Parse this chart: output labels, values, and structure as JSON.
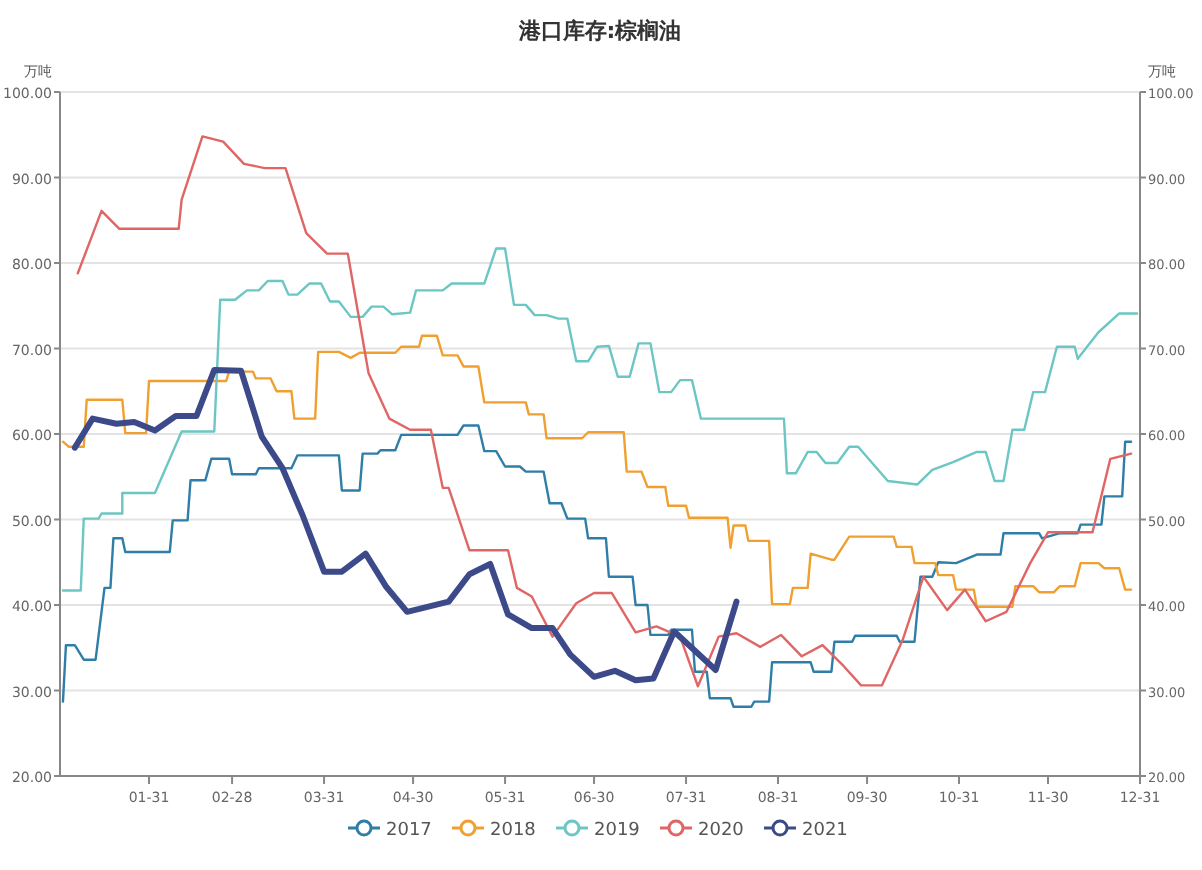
{
  "chart_data": {
    "type": "line",
    "title": "港口库存:棕榈油",
    "ylabel": "万吨",
    "y2label": "万吨",
    "xlim": [
      "--01-01",
      "--12-31"
    ],
    "xticks": [
      {
        "value": "--01-31",
        "label": "01-31"
      },
      {
        "value": "--02-28",
        "label": "02-28"
      },
      {
        "value": "--03-31",
        "label": "03-31"
      },
      {
        "value": "--04-30",
        "label": "04-30"
      },
      {
        "value": "--05-31",
        "label": "05-31"
      },
      {
        "value": "--06-30",
        "label": "06-30"
      },
      {
        "value": "--07-31",
        "label": "07-31"
      },
      {
        "value": "--08-31",
        "label": "08-31"
      },
      {
        "value": "--09-30",
        "label": "09-30"
      },
      {
        "value": "--10-31",
        "label": "10-31"
      },
      {
        "value": "--11-30",
        "label": "11-30"
      },
      {
        "value": "--12-31",
        "label": "12-31"
      }
    ],
    "ylim": [
      20,
      100
    ],
    "yticks": [
      {
        "value": 20,
        "label": "20.00"
      },
      {
        "value": 30,
        "label": "30.00"
      },
      {
        "value": 40,
        "label": "40.00"
      },
      {
        "value": 50,
        "label": "50.00"
      },
      {
        "value": 60,
        "label": "60.00"
      },
      {
        "value": 70,
        "label": "70.00"
      },
      {
        "value": 80,
        "label": "80.00"
      },
      {
        "value": 90,
        "label": "90.00"
      },
      {
        "value": 100,
        "label": "100.00"
      }
    ],
    "y2lim": [
      20,
      100
    ],
    "y2ticks": [
      {
        "value": 20,
        "label": "20.00"
      },
      {
        "value": 30,
        "label": "30.00"
      },
      {
        "value": 40,
        "label": "40.00"
      },
      {
        "value": 50,
        "label": "50.00"
      },
      {
        "value": 60,
        "label": "60.00"
      },
      {
        "value": 70,
        "label": "70.00"
      },
      {
        "value": 80,
        "label": "80.00"
      },
      {
        "value": 90,
        "label": "90.00"
      },
      {
        "value": 100,
        "label": "100.00"
      }
    ],
    "grid": "y",
    "legend": "bottom",
    "series": [
      {
        "name": "2017",
        "color": "#2f7ea8",
        "x": [
          "--01-02",
          "--01-03",
          "--01-06",
          "--01-09",
          "--01-13",
          "--01-16",
          "--01-18",
          "--01-19",
          "--01-22",
          "--01-23",
          "--02-07",
          "--02-08",
          "--02-13",
          "--02-14",
          "--02-19",
          "--02-21",
          "--02-27",
          "--02-28",
          "--03-08",
          "--03-09",
          "--03-20",
          "--03-22",
          "--04-05",
          "--04-06",
          "--04-12",
          "--04-13",
          "--04-18",
          "--04-19",
          "--04-24",
          "--04-26",
          "--05-15",
          "--05-17",
          "--05-22",
          "--05-24",
          "--05-28",
          "--05-31",
          "--06-05",
          "--06-07",
          "--06-13",
          "--06-15",
          "--06-19",
          "--06-21",
          "--06-27",
          "--06-28",
          "--07-04",
          "--07-05",
          "--07-13",
          "--07-14",
          "--07-18",
          "--07-19",
          "--07-25",
          "--07-26",
          "--08-02",
          "--08-03",
          "--08-07",
          "--08-08",
          "--08-15",
          "--08-16",
          "--08-22",
          "--08-23",
          "--08-28",
          "--08-29",
          "--09-11",
          "--09-12",
          "--09-18",
          "--09-19",
          "--09-25",
          "--09-26",
          "--10-10",
          "--10-11",
          "--10-16",
          "--10-18",
          "--10-22",
          "--10-24",
          "--10-30",
          "--11-06",
          "--11-14",
          "--11-15",
          "--11-27",
          "--11-28",
          "--12-04",
          "--12-10",
          "--12-11",
          "--12-18",
          "--12-19",
          "--12-25",
          "--12-26",
          "--12-28"
        ],
        "values": [
          28.7,
          35.3,
          35.3,
          33.6,
          33.6,
          42.0,
          42.0,
          47.8,
          47.8,
          46.2,
          46.2,
          49.9,
          49.9,
          54.6,
          54.6,
          57.1,
          57.1,
          55.3,
          55.3,
          56.0,
          56.0,
          57.5,
          57.5,
          53.4,
          53.4,
          57.7,
          57.7,
          58.1,
          58.1,
          59.9,
          59.9,
          61.0,
          61.0,
          58.0,
          58.0,
          56.2,
          56.2,
          55.6,
          55.6,
          51.9,
          51.9,
          50.1,
          50.1,
          47.8,
          47.8,
          43.3,
          43.3,
          40.0,
          40.0,
          36.5,
          36.5,
          37.1,
          37.1,
          32.2,
          32.2,
          29.1,
          29.1,
          28.1,
          28.1,
          28.7,
          28.7,
          33.3,
          33.3,
          32.2,
          32.2,
          35.7,
          35.7,
          36.4,
          36.4,
          35.7,
          35.7,
          43.3,
          43.3,
          45.0,
          44.9,
          45.9,
          45.9,
          48.4,
          48.4,
          47.8,
          48.4,
          48.4,
          49.4,
          49.4,
          52.7,
          52.7,
          59.1,
          59.1
        ]
      },
      {
        "name": "2018",
        "color": "#f0a030",
        "x": [
          "--01-02",
          "--01-04",
          "--01-09",
          "--01-10",
          "--01-22",
          "--01-23",
          "--01-30",
          "--01-31",
          "--02-26",
          "--02-27",
          "--03-07",
          "--03-08",
          "--03-13",
          "--03-15",
          "--03-20",
          "--03-21",
          "--03-28",
          "--03-29",
          "--04-05",
          "--04-09",
          "--04-12",
          "--04-24",
          "--04-26",
          "--05-02",
          "--05-03",
          "--05-08",
          "--05-10",
          "--05-15",
          "--05-17",
          "--05-22",
          "--05-24",
          "--06-07",
          "--06-08",
          "--06-13",
          "--06-14",
          "--06-26",
          "--06-28",
          "--07-10",
          "--07-11",
          "--07-16",
          "--07-18",
          "--07-24",
          "--07-25",
          "--07-31",
          "--08-01",
          "--08-14",
          "--08-15",
          "--08-16",
          "--08-20",
          "--08-21",
          "--08-28",
          "--08-29",
          "--09-04",
          "--09-05",
          "--09-10",
          "--09-11",
          "--09-18",
          "--09-19",
          "--09-24",
          "--10-09",
          "--10-10",
          "--10-15",
          "--10-16",
          "--10-23",
          "--10-24",
          "--10-29",
          "--10-30",
          "--11-05",
          "--11-06",
          "--11-18",
          "--11-19",
          "--11-25",
          "--11-27",
          "--12-02",
          "--12-04",
          "--12-09",
          "--12-11",
          "--12-17",
          "--12-19",
          "--12-24",
          "--12-26",
          "--12-28"
        ],
        "values": [
          59.1,
          58.5,
          58.5,
          64.0,
          64.0,
          60.1,
          60.1,
          66.2,
          66.2,
          67.3,
          67.3,
          66.5,
          66.5,
          65.0,
          65.0,
          61.8,
          61.8,
          69.6,
          69.6,
          68.9,
          69.5,
          69.5,
          70.2,
          70.2,
          71.5,
          71.5,
          69.2,
          69.2,
          67.9,
          67.9,
          63.7,
          63.7,
          62.3,
          62.3,
          59.5,
          59.5,
          60.2,
          60.2,
          55.6,
          55.6,
          53.8,
          53.8,
          51.6,
          51.6,
          50.2,
          50.2,
          46.7,
          49.3,
          49.3,
          47.5,
          47.5,
          40.1,
          40.1,
          42.0,
          42.0,
          46.0,
          45.3,
          45.3,
          48.0,
          48.0,
          46.8,
          46.8,
          44.9,
          44.9,
          43.5,
          43.5,
          41.8,
          41.8,
          39.8,
          39.8,
          42.2,
          42.2,
          41.5,
          41.5,
          42.2,
          42.2,
          44.9,
          44.9,
          44.3,
          44.3,
          41.8,
          41.8
        ]
      },
      {
        "name": "2019",
        "color": "#6cc6c4",
        "x": [
          "--01-02",
          "--01-08",
          "--01-09",
          "--01-14",
          "--01-15",
          "--01-22",
          "--01-22",
          "--01-24",
          "--02-02",
          "--02-11",
          "--02-22",
          "--02-24",
          "--03-01",
          "--03-05",
          "--03-09",
          "--03-12",
          "--03-17",
          "--03-19",
          "--03-22",
          "--03-26",
          "--03-30",
          "--04-02",
          "--04-05",
          "--04-09",
          "--04-13",
          "--04-16",
          "--04-20",
          "--04-23",
          "--04-29",
          "--05-01",
          "--05-10",
          "--05-13",
          "--05-24",
          "--05-28",
          "--05-31",
          "--06-03",
          "--06-07",
          "--06-10",
          "--06-14",
          "--06-18",
          "--06-21",
          "--06-24",
          "--06-28",
          "--07-01",
          "--07-05",
          "--07-08",
          "--07-12",
          "--07-15",
          "--07-19",
          "--07-22",
          "--07-26",
          "--07-29",
          "--08-02",
          "--08-05",
          "--09-02",
          "--09-03",
          "--09-06",
          "--09-10",
          "--09-13",
          "--09-16",
          "--09-20",
          "--09-24",
          "--09-27",
          "--10-07",
          "--10-17",
          "--10-22",
          "--10-29",
          "--11-06",
          "--11-09",
          "--11-12",
          "--11-15",
          "--11-18",
          "--11-22",
          "--11-25",
          "--11-29",
          "--12-03",
          "--12-09",
          "--12-10",
          "--12-17",
          "--12-24",
          "--12-30"
        ],
        "values": [
          41.7,
          41.7,
          50.1,
          50.1,
          50.7,
          50.7,
          53.1,
          53.1,
          53.1,
          60.3,
          60.3,
          75.7,
          75.7,
          76.8,
          76.8,
          77.9,
          77.9,
          76.3,
          76.3,
          77.6,
          77.6,
          75.5,
          75.5,
          73.7,
          73.7,
          74.9,
          74.9,
          74.0,
          74.2,
          76.8,
          76.8,
          77.6,
          77.6,
          81.7,
          81.7,
          75.1,
          75.1,
          73.9,
          73.9,
          73.5,
          73.5,
          68.5,
          68.5,
          70.2,
          70.3,
          66.7,
          66.7,
          70.6,
          70.6,
          64.9,
          64.9,
          66.3,
          66.3,
          61.8,
          61.8,
          55.4,
          55.4,
          57.9,
          57.9,
          56.6,
          56.6,
          58.5,
          58.5,
          54.5,
          54.1,
          55.8,
          56.7,
          57.9,
          57.9,
          54.5,
          54.5,
          60.5,
          60.5,
          64.9,
          64.9,
          70.2,
          70.2,
          68.8,
          71.9,
          74.1,
          74.1
        ]
      },
      {
        "name": "2020",
        "color": "#e06666",
        "x": [
          "--01-07",
          "--01-15",
          "--01-21",
          "--02-10",
          "--02-11",
          "--02-18",
          "--02-25",
          "--03-04",
          "--03-11",
          "--03-18",
          "--03-25",
          "--04-01",
          "--04-08",
          "--04-15",
          "--04-22",
          "--04-29",
          "--05-06",
          "--05-10",
          "--05-12",
          "--05-19",
          "--06-01",
          "--06-04",
          "--06-09",
          "--06-16",
          "--06-24",
          "--06-30",
          "--07-06",
          "--07-14",
          "--07-21",
          "--07-29",
          "--08-04",
          "--08-11",
          "--08-17",
          "--08-25",
          "--09-01",
          "--09-08",
          "--09-15",
          "--09-22",
          "--09-28",
          "--10-05",
          "--10-12",
          "--10-19",
          "--10-27",
          "--11-02",
          "--11-09",
          "--11-16",
          "--11-24",
          "--11-30",
          "--12-15",
          "--12-21",
          "--12-28"
        ],
        "values": [
          78.8,
          86.1,
          84.0,
          84.0,
          87.4,
          94.8,
          94.2,
          91.6,
          91.1,
          91.1,
          83.5,
          81.1,
          81.1,
          67.1,
          61.8,
          60.5,
          60.5,
          53.7,
          53.7,
          46.4,
          46.4,
          42.0,
          41.0,
          36.3,
          40.2,
          41.4,
          41.4,
          36.8,
          37.5,
          36.3,
          30.5,
          36.3,
          36.7,
          35.1,
          36.5,
          34.0,
          35.3,
          32.9,
          30.6,
          30.6,
          35.9,
          43.3,
          39.4,
          41.8,
          38.1,
          39.2,
          44.9,
          48.5,
          48.5,
          57.1,
          57.7
        ]
      },
      {
        "name": "2021",
        "color": "#3d4a8a",
        "x": [
          "--01-06",
          "--01-12",
          "--01-20",
          "--01-26",
          "--02-02",
          "--02-09",
          "--02-16",
          "--02-22",
          "--03-03",
          "--03-10",
          "--03-17",
          "--03-24",
          "--03-31",
          "--04-06",
          "--04-14",
          "--04-21",
          "--04-28",
          "--05-12",
          "--05-19",
          "--05-26",
          "--06-01",
          "--06-09",
          "--06-16",
          "--06-22",
          "--06-30",
          "--07-07",
          "--07-14",
          "--07-20",
          "--07-27",
          "--08-10",
          "--08-17"
        ],
        "values": [
          58.4,
          61.8,
          61.2,
          61.4,
          60.4,
          62.1,
          62.1,
          67.5,
          67.4,
          59.7,
          56.0,
          50.3,
          43.9,
          43.9,
          46.0,
          42.1,
          39.2,
          40.4,
          43.6,
          44.8,
          38.9,
          37.3,
          37.3,
          34.2,
          31.6,
          32.3,
          31.2,
          31.4,
          36.9,
          32.4,
          40.4
        ]
      }
    ]
  }
}
